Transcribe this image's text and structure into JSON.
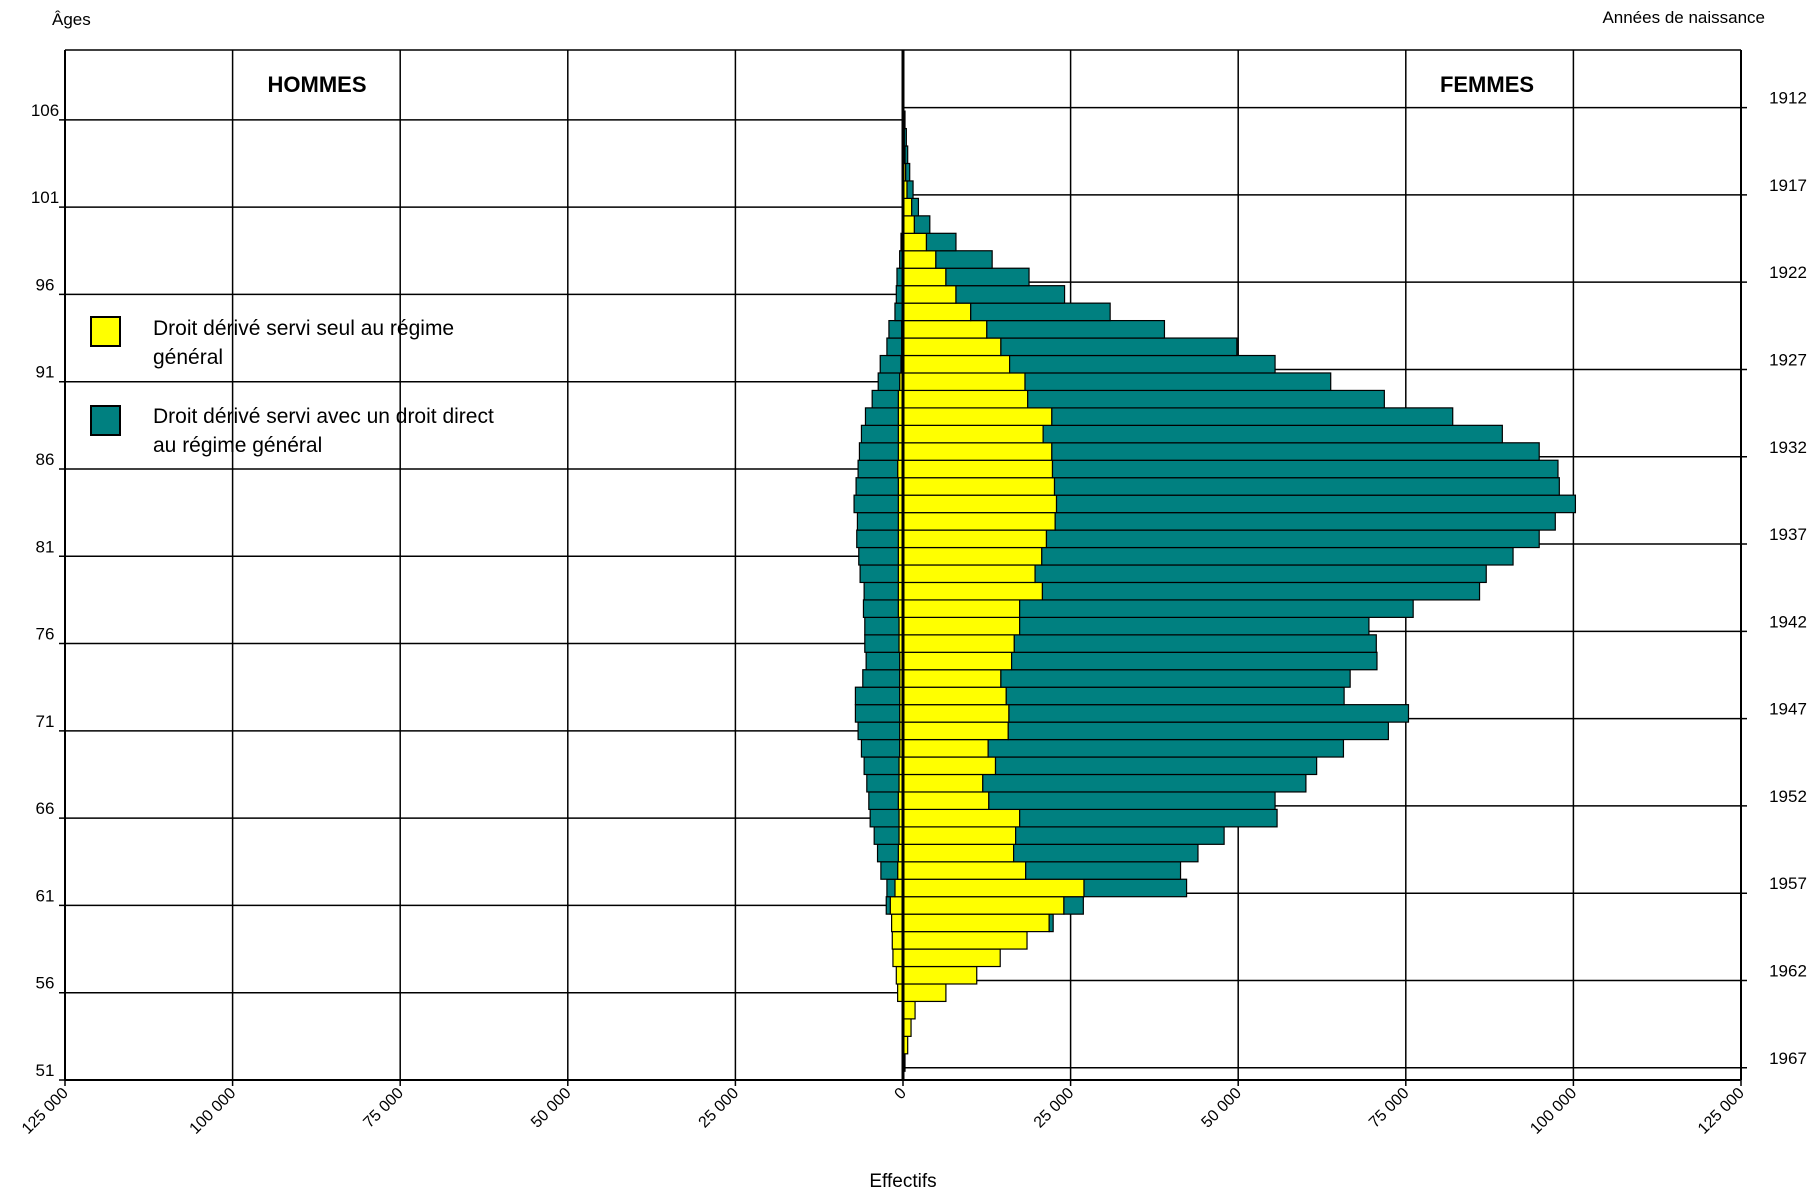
{
  "chart_data": {
    "type": "bar",
    "subtype": "population-pyramid",
    "y_axis_left_label": "Âges",
    "y_axis_right_label": "Années de naissance",
    "x_axis_label": "Effectifs",
    "left_panel_title": "HOMMES",
    "right_panel_title": "FEMMES",
    "xlim": [
      -125000,
      125000
    ],
    "x_ticks": [
      -125000,
      -100000,
      -75000,
      -50000,
      -25000,
      0,
      25000,
      50000,
      75000,
      100000,
      125000
    ],
    "x_tick_labels": [
      "125 000",
      "100 000",
      "75 000",
      "50 000",
      "25 000",
      "0",
      "25 000",
      "50 000",
      "75 000",
      "100 000",
      "125 000"
    ],
    "age_range": [
      51,
      110
    ],
    "age_ticks": [
      51,
      56,
      61,
      66,
      71,
      76,
      81,
      86,
      91,
      96,
      101,
      106
    ],
    "year_ticks": [
      1912,
      1917,
      1922,
      1927,
      1932,
      1937,
      1942,
      1947,
      1952,
      1957,
      1962,
      1967
    ],
    "grid": true,
    "legend_position": "left",
    "colors": {
      "derive_seul": "#ffff00",
      "derive_avec_direct": "#008080"
    },
    "legend": [
      {
        "key": "derive_seul",
        "lines": [
          "Droit dérivé servi seul au régime",
          "général"
        ]
      },
      {
        "key": "derive_avec_direct",
        "lines": [
          "Droit dérivé servi avec un droit direct",
          "au régime général"
        ]
      }
    ],
    "ages": [
      52,
      53,
      54,
      55,
      56,
      57,
      58,
      59,
      60,
      61,
      62,
      63,
      64,
      65,
      66,
      67,
      68,
      69,
      70,
      71,
      72,
      73,
      74,
      75,
      76,
      77,
      78,
      79,
      80,
      81,
      82,
      83,
      84,
      85,
      86,
      87,
      88,
      89,
      90,
      91,
      92,
      93,
      94,
      95,
      96,
      97,
      98,
      99,
      100,
      101,
      102,
      103,
      104,
      105,
      106,
      107,
      108,
      109
    ],
    "series": [
      {
        "name": "Droit dérivé servi seul au régime général – femmes",
        "key": "derive_seul",
        "values": [
          300,
          700,
          1200,
          1800,
          6400,
          11000,
          14500,
          18500,
          21800,
          24000,
          27000,
          18300,
          16500,
          16800,
          17400,
          12800,
          11900,
          13800,
          12700,
          15700,
          15800,
          15400,
          14600,
          16200,
          16600,
          17400,
          17400,
          20800,
          19700,
          20700,
          21400,
          22700,
          22900,
          22600,
          22300,
          22200,
          20900,
          22200,
          18600,
          18200,
          15900,
          14600,
          12500,
          10100,
          7900,
          6400,
          4900,
          3500,
          1700,
          1300,
          600,
          400,
          300,
          200,
          100,
          0,
          0,
          0
        ]
      },
      {
        "name": "Droit dérivé servi avec un droit direct au régime général – femmes",
        "key": "derive_avec_direct",
        "values": [
          0,
          0,
          0,
          0,
          0,
          0,
          0,
          0,
          600,
          2900,
          15300,
          23100,
          27500,
          31100,
          38400,
          42700,
          48200,
          47900,
          53000,
          56700,
          59600,
          50400,
          52100,
          54500,
          54000,
          52100,
          58700,
          65200,
          67300,
          70300,
          73500,
          74600,
          77400,
          75300,
          75400,
          72700,
          68500,
          59800,
          53200,
          45600,
          39600,
          35200,
          26500,
          20800,
          16200,
          12400,
          8400,
          4400,
          2300,
          1000,
          900,
          600,
          400,
          300,
          200,
          100,
          100,
          100
        ]
      },
      {
        "name": "Droit dérivé servi seul au régime général – hommes",
        "key": "derive_seul",
        "values": [
          0,
          0,
          0,
          100,
          800,
          1000,
          1500,
          1600,
          1700,
          1900,
          1200,
          800,
          700,
          600,
          600,
          700,
          600,
          600,
          500,
          500,
          500,
          500,
          500,
          500,
          600,
          600,
          700,
          700,
          700,
          700,
          700,
          700,
          700,
          700,
          800,
          700,
          700,
          700,
          700,
          500,
          300,
          200,
          200,
          100,
          100,
          0,
          0,
          0,
          0,
          0,
          0,
          0,
          0,
          0,
          0,
          0,
          0,
          0
        ]
      },
      {
        "name": "Droit dérivé servi avec un droit direct au régime général – hommes",
        "key": "derive_avec_direct",
        "values": [
          0,
          0,
          0,
          0,
          0,
          0,
          0,
          0,
          0,
          600,
          1200,
          2500,
          3100,
          3700,
          4300,
          4400,
          4800,
          5200,
          5700,
          6200,
          6600,
          6600,
          5500,
          5000,
          5100,
          5100,
          5200,
          5100,
          5700,
          5900,
          6200,
          6100,
          6600,
          6300,
          5900,
          5800,
          5500,
          4900,
          3900,
          3200,
          3100,
          2200,
          1900,
          1100,
          900,
          900,
          500,
          300,
          0,
          0,
          0,
          0,
          0,
          0,
          0,
          0,
          0,
          0
        ]
      }
    ]
  }
}
